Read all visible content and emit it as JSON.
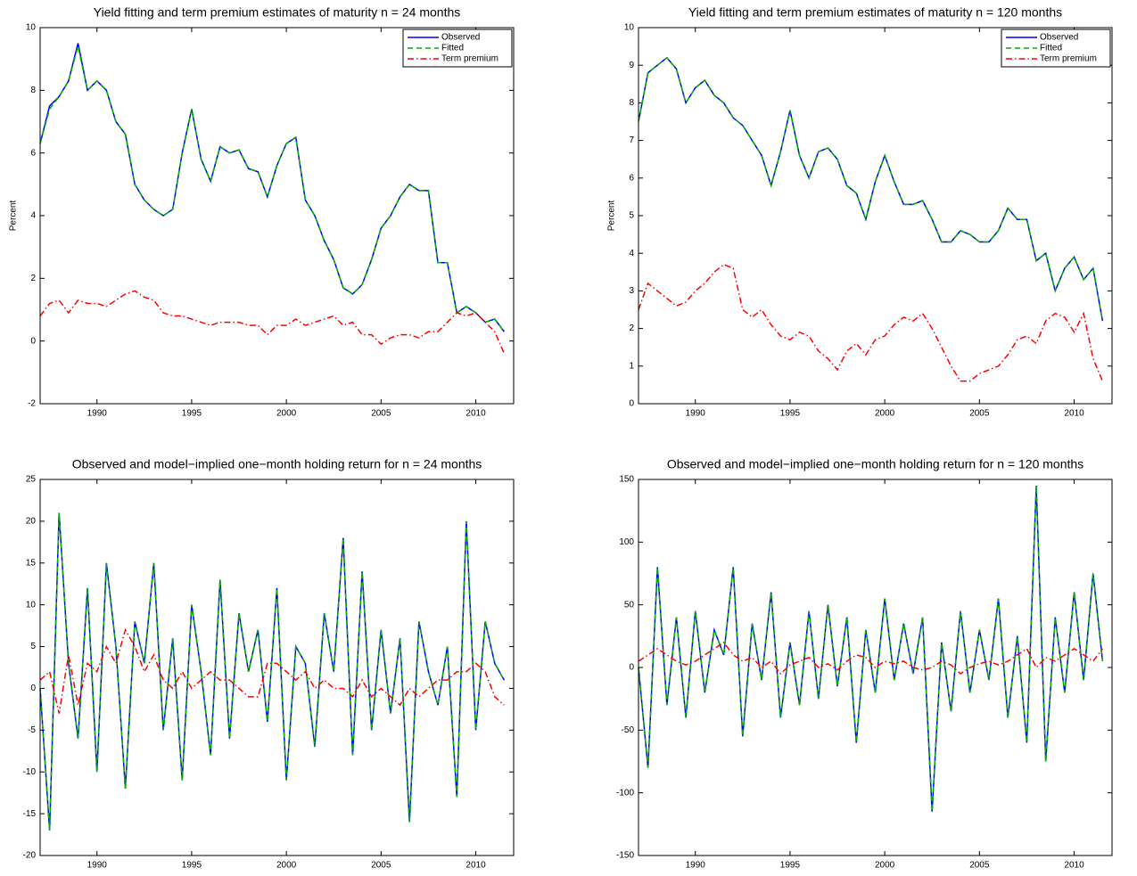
{
  "chart_data": [
    {
      "type": "line",
      "title": "Yield fitting and term premium estimates of maturity n = 24 months",
      "ylabel": "Percent",
      "x": [
        1987.0,
        1987.5,
        1988.0,
        1988.5,
        1989.0,
        1989.5,
        1990.0,
        1990.5,
        1991.0,
        1991.5,
        1992.0,
        1992.5,
        1993.0,
        1993.5,
        1994.0,
        1994.5,
        1995.0,
        1995.5,
        1996.0,
        1996.5,
        1997.0,
        1997.5,
        1998.0,
        1998.5,
        1999.0,
        1999.5,
        2000.0,
        2000.5,
        2001.0,
        2001.5,
        2002.0,
        2002.5,
        2003.0,
        2003.5,
        2004.0,
        2004.5,
        2005.0,
        2005.5,
        2006.0,
        2006.5,
        2007.0,
        2007.5,
        2008.0,
        2008.5,
        2009.0,
        2009.5,
        2010.0,
        2010.5,
        2011.0,
        2011.5
      ],
      "series": [
        {
          "name": "Observed",
          "color": "#0000ff",
          "linestyle": "solid",
          "values": [
            6.3,
            7.5,
            7.8,
            8.3,
            9.5,
            8.0,
            8.3,
            8.0,
            7.0,
            6.6,
            5.0,
            4.5,
            4.2,
            4.0,
            4.2,
            6.0,
            7.4,
            5.8,
            5.1,
            6.2,
            6.0,
            6.1,
            5.5,
            5.4,
            4.6,
            5.6,
            6.3,
            6.5,
            4.5,
            4.0,
            3.2,
            2.6,
            1.7,
            1.5,
            1.8,
            2.6,
            3.6,
            4.0,
            4.6,
            5.0,
            4.8,
            4.8,
            2.5,
            2.5,
            0.9,
            1.1,
            0.9,
            0.6,
            0.7,
            0.3
          ]
        },
        {
          "name": "Fitted",
          "color": "#00b000",
          "linestyle": "dashed",
          "values": [
            6.3,
            7.4,
            7.8,
            8.3,
            9.4,
            8.0,
            8.3,
            8.0,
            7.0,
            6.6,
            5.0,
            4.5,
            4.2,
            4.0,
            4.2,
            6.0,
            7.4,
            5.8,
            5.1,
            6.2,
            6.0,
            6.1,
            5.5,
            5.4,
            4.6,
            5.6,
            6.3,
            6.5,
            4.5,
            4.0,
            3.2,
            2.6,
            1.7,
            1.5,
            1.8,
            2.6,
            3.6,
            4.0,
            4.6,
            5.0,
            4.8,
            4.8,
            2.5,
            2.5,
            0.9,
            1.1,
            0.9,
            0.6,
            0.7,
            0.3
          ]
        },
        {
          "name": "Term premium",
          "color": "#ff0000",
          "linestyle": "dashdot",
          "values": [
            0.8,
            1.2,
            1.3,
            0.9,
            1.3,
            1.2,
            1.2,
            1.1,
            1.3,
            1.5,
            1.6,
            1.4,
            1.3,
            0.9,
            0.8,
            0.8,
            0.7,
            0.6,
            0.5,
            0.6,
            0.6,
            0.6,
            0.5,
            0.5,
            0.2,
            0.5,
            0.5,
            0.7,
            0.5,
            0.6,
            0.7,
            0.8,
            0.5,
            0.6,
            0.2,
            0.2,
            -0.1,
            0.1,
            0.2,
            0.2,
            0.1,
            0.3,
            0.3,
            0.6,
            0.9,
            0.8,
            0.9,
            0.6,
            0.3,
            -0.4
          ]
        }
      ],
      "xlim": [
        1987,
        2012
      ],
      "xticks": [
        1990,
        1995,
        2000,
        2005,
        2010
      ],
      "ylim": [
        -2,
        10
      ],
      "yticks": [
        -2,
        0,
        2,
        4,
        6,
        8,
        10
      ],
      "legend": "upper right",
      "grid": false
    },
    {
      "type": "line",
      "title": "Yield fitting and term premium estimates of maturity n = 120 months",
      "ylabel": "Percent",
      "x": [
        1987.0,
        1987.5,
        1988.0,
        1988.5,
        1989.0,
        1989.5,
        1990.0,
        1990.5,
        1991.0,
        1991.5,
        1992.0,
        1992.5,
        1993.0,
        1993.5,
        1994.0,
        1994.5,
        1995.0,
        1995.5,
        1996.0,
        1996.5,
        1997.0,
        1997.5,
        1998.0,
        1998.5,
        1999.0,
        1999.5,
        2000.0,
        2000.5,
        2001.0,
        2001.5,
        2002.0,
        2002.5,
        2003.0,
        2003.5,
        2004.0,
        2004.5,
        2005.0,
        2005.5,
        2006.0,
        2006.5,
        2007.0,
        2007.5,
        2008.0,
        2008.5,
        2009.0,
        2009.5,
        2010.0,
        2010.5,
        2011.0,
        2011.5
      ],
      "series": [
        {
          "name": "Observed",
          "color": "#0000ff",
          "linestyle": "solid",
          "values": [
            7.5,
            8.8,
            9.0,
            9.2,
            8.9,
            8.0,
            8.4,
            8.6,
            8.2,
            8.0,
            7.6,
            7.4,
            7.0,
            6.6,
            5.8,
            6.7,
            7.8,
            6.6,
            6.0,
            6.7,
            6.8,
            6.5,
            5.8,
            5.6,
            4.9,
            5.9,
            6.6,
            5.9,
            5.3,
            5.3,
            5.4,
            4.9,
            4.3,
            4.3,
            4.6,
            4.5,
            4.3,
            4.3,
            4.6,
            5.2,
            4.9,
            4.9,
            3.8,
            4.0,
            3.0,
            3.6,
            3.9,
            3.3,
            3.6,
            2.2
          ]
        },
        {
          "name": "Fitted",
          "color": "#00b000",
          "linestyle": "dashed",
          "values": [
            7.5,
            8.8,
            9.0,
            9.2,
            8.9,
            8.0,
            8.4,
            8.6,
            8.2,
            8.0,
            7.6,
            7.4,
            7.0,
            6.6,
            5.8,
            6.7,
            7.8,
            6.6,
            6.0,
            6.7,
            6.8,
            6.5,
            5.8,
            5.6,
            4.9,
            5.9,
            6.6,
            5.9,
            5.3,
            5.3,
            5.4,
            4.9,
            4.3,
            4.3,
            4.6,
            4.5,
            4.3,
            4.3,
            4.6,
            5.2,
            4.9,
            4.9,
            3.8,
            4.0,
            3.0,
            3.6,
            3.9,
            3.3,
            3.6,
            2.2
          ]
        },
        {
          "name": "Term premium",
          "color": "#ff0000",
          "linestyle": "dashdot",
          "values": [
            2.5,
            3.2,
            3.0,
            2.8,
            2.6,
            2.7,
            3.0,
            3.2,
            3.5,
            3.7,
            3.6,
            2.5,
            2.3,
            2.5,
            2.1,
            1.8,
            1.7,
            1.9,
            1.8,
            1.4,
            1.2,
            0.9,
            1.4,
            1.6,
            1.3,
            1.7,
            1.8,
            2.1,
            2.3,
            2.2,
            2.4,
            2.0,
            1.5,
            1.0,
            0.6,
            0.6,
            0.8,
            0.9,
            1.0,
            1.3,
            1.7,
            1.8,
            1.6,
            2.2,
            2.4,
            2.3,
            1.9,
            2.4,
            1.2,
            0.6
          ]
        }
      ],
      "xlim": [
        1987,
        2012
      ],
      "xticks": [
        1990,
        1995,
        2000,
        2005,
        2010
      ],
      "ylim": [
        0,
        10
      ],
      "yticks": [
        0,
        1,
        2,
        3,
        4,
        5,
        6,
        7,
        8,
        9,
        10
      ],
      "legend": "upper right",
      "grid": false
    },
    {
      "type": "line",
      "title": "Observed and model−implied one−month holding return for n = 24 months",
      "x": [
        1987.0,
        1987.5,
        1988.0,
        1988.5,
        1989.0,
        1989.5,
        1990.0,
        1990.5,
        1991.0,
        1991.5,
        1992.0,
        1992.5,
        1993.0,
        1993.5,
        1994.0,
        1994.5,
        1995.0,
        1995.5,
        1996.0,
        1996.5,
        1997.0,
        1997.5,
        1998.0,
        1998.5,
        1999.0,
        1999.5,
        2000.0,
        2000.5,
        2001.0,
        2001.5,
        2002.0,
        2002.5,
        2003.0,
        2003.5,
        2004.0,
        2004.5,
        2005.0,
        2005.5,
        2006.0,
        2006.5,
        2007.0,
        2007.5,
        2008.0,
        2008.5,
        2009.0,
        2009.5,
        2010.0,
        2010.5,
        2011.0,
        2011.5
      ],
      "series": [
        {
          "color": "#0000ff",
          "linestyle": "solid",
          "values": [
            0,
            -17,
            21,
            3,
            -6,
            12,
            -10,
            15,
            5,
            -12,
            8,
            3,
            15,
            -5,
            6,
            -11,
            10,
            2,
            -8,
            13,
            -6,
            9,
            2,
            7,
            -4,
            12,
            -11,
            5,
            3,
            -7,
            9,
            2,
            18,
            -8,
            14,
            -5,
            7,
            -3,
            6,
            -16,
            8,
            2,
            -2,
            5,
            -13,
            20,
            -5,
            8,
            3,
            1
          ]
        },
        {
          "color": "#00b000",
          "linestyle": "dashed",
          "values": [
            0,
            -17,
            21,
            3,
            -6,
            12,
            -10,
            15,
            5,
            -12,
            8,
            3,
            15,
            -5,
            6,
            -11,
            10,
            2,
            -8,
            13,
            -6,
            9,
            2,
            7,
            -4,
            12,
            -11,
            5,
            3,
            -7,
            9,
            2,
            18,
            -8,
            14,
            -5,
            7,
            -3,
            6,
            -16,
            8,
            2,
            -2,
            5,
            -13,
            20,
            -5,
            8,
            3,
            1
          ]
        },
        {
          "color": "#ff0000",
          "linestyle": "dashdot",
          "values": [
            1,
            2,
            -3,
            4,
            -2,
            3,
            2,
            5,
            3,
            7,
            5,
            2,
            4,
            1,
            0,
            2,
            0,
            1,
            2,
            1,
            1,
            0,
            -1,
            -1,
            3,
            3,
            2,
            1,
            2,
            0,
            1,
            0,
            0,
            -1,
            1,
            -1,
            0,
            -1,
            -2,
            0,
            -1,
            0,
            1,
            1,
            2,
            2,
            3,
            2,
            -1,
            -2
          ]
        }
      ],
      "xlim": [
        1987,
        2012
      ],
      "xticks": [
        1990,
        1995,
        2000,
        2005,
        2010
      ],
      "ylim": [
        -20,
        25
      ],
      "yticks": [
        -20,
        -15,
        -10,
        -5,
        0,
        5,
        10,
        15,
        20,
        25
      ],
      "grid": false
    },
    {
      "type": "line",
      "title": "Observed and model−implied one−month holding return for n = 120 months",
      "x": [
        1987.0,
        1987.5,
        1988.0,
        1988.5,
        1989.0,
        1989.5,
        1990.0,
        1990.5,
        1991.0,
        1991.5,
        1992.0,
        1992.5,
        1993.0,
        1993.5,
        1994.0,
        1994.5,
        1995.0,
        1995.5,
        1996.0,
        1996.5,
        1997.0,
        1997.5,
        1998.0,
        1998.5,
        1999.0,
        1999.5,
        2000.0,
        2000.5,
        2001.0,
        2001.5,
        2002.0,
        2002.5,
        2003.0,
        2003.5,
        2004.0,
        2004.5,
        2005.0,
        2005.5,
        2006.0,
        2006.5,
        2007.0,
        2007.5,
        2008.0,
        2008.5,
        2009.0,
        2009.5,
        2010.0,
        2010.5,
        2011.0,
        2011.5
      ],
      "series": [
        {
          "color": "#0000ff",
          "linestyle": "solid",
          "values": [
            0,
            -80,
            80,
            -30,
            40,
            -40,
            45,
            -20,
            30,
            10,
            80,
            -55,
            35,
            -10,
            60,
            -40,
            20,
            -30,
            45,
            -25,
            50,
            -15,
            40,
            -60,
            30,
            -20,
            55,
            -10,
            35,
            -5,
            40,
            -115,
            20,
            -35,
            45,
            -20,
            30,
            -10,
            55,
            -40,
            25,
            -60,
            145,
            -75,
            40,
            -20,
            60,
            -10,
            75,
            5
          ]
        },
        {
          "color": "#00b000",
          "linestyle": "dashed",
          "values": [
            0,
            -80,
            80,
            -30,
            40,
            -40,
            45,
            -20,
            30,
            10,
            80,
            -55,
            35,
            -10,
            60,
            -40,
            20,
            -30,
            45,
            -25,
            50,
            -15,
            40,
            -60,
            30,
            -20,
            55,
            -10,
            35,
            -5,
            40,
            -115,
            20,
            -35,
            45,
            -20,
            30,
            -10,
            55,
            -40,
            25,
            -60,
            145,
            -75,
            40,
            -20,
            60,
            -10,
            75,
            5
          ]
        },
        {
          "color": "#ff0000",
          "linestyle": "dashdot",
          "values": [
            5,
            10,
            15,
            10,
            5,
            2,
            5,
            10,
            15,
            20,
            10,
            5,
            8,
            0,
            5,
            -5,
            2,
            5,
            8,
            0,
            3,
            -2,
            5,
            10,
            8,
            0,
            5,
            3,
            5,
            0,
            -2,
            0,
            5,
            2,
            -5,
            0,
            3,
            5,
            2,
            5,
            10,
            15,
            0,
            8,
            5,
            10,
            15,
            10,
            5,
            15
          ]
        }
      ],
      "xlim": [
        1987,
        2012
      ],
      "xticks": [
        1990,
        1995,
        2000,
        2005,
        2010
      ],
      "ylim": [
        -150,
        150
      ],
      "yticks": [
        -150,
        -100,
        -50,
        0,
        50,
        100,
        150
      ],
      "grid": false
    }
  ]
}
